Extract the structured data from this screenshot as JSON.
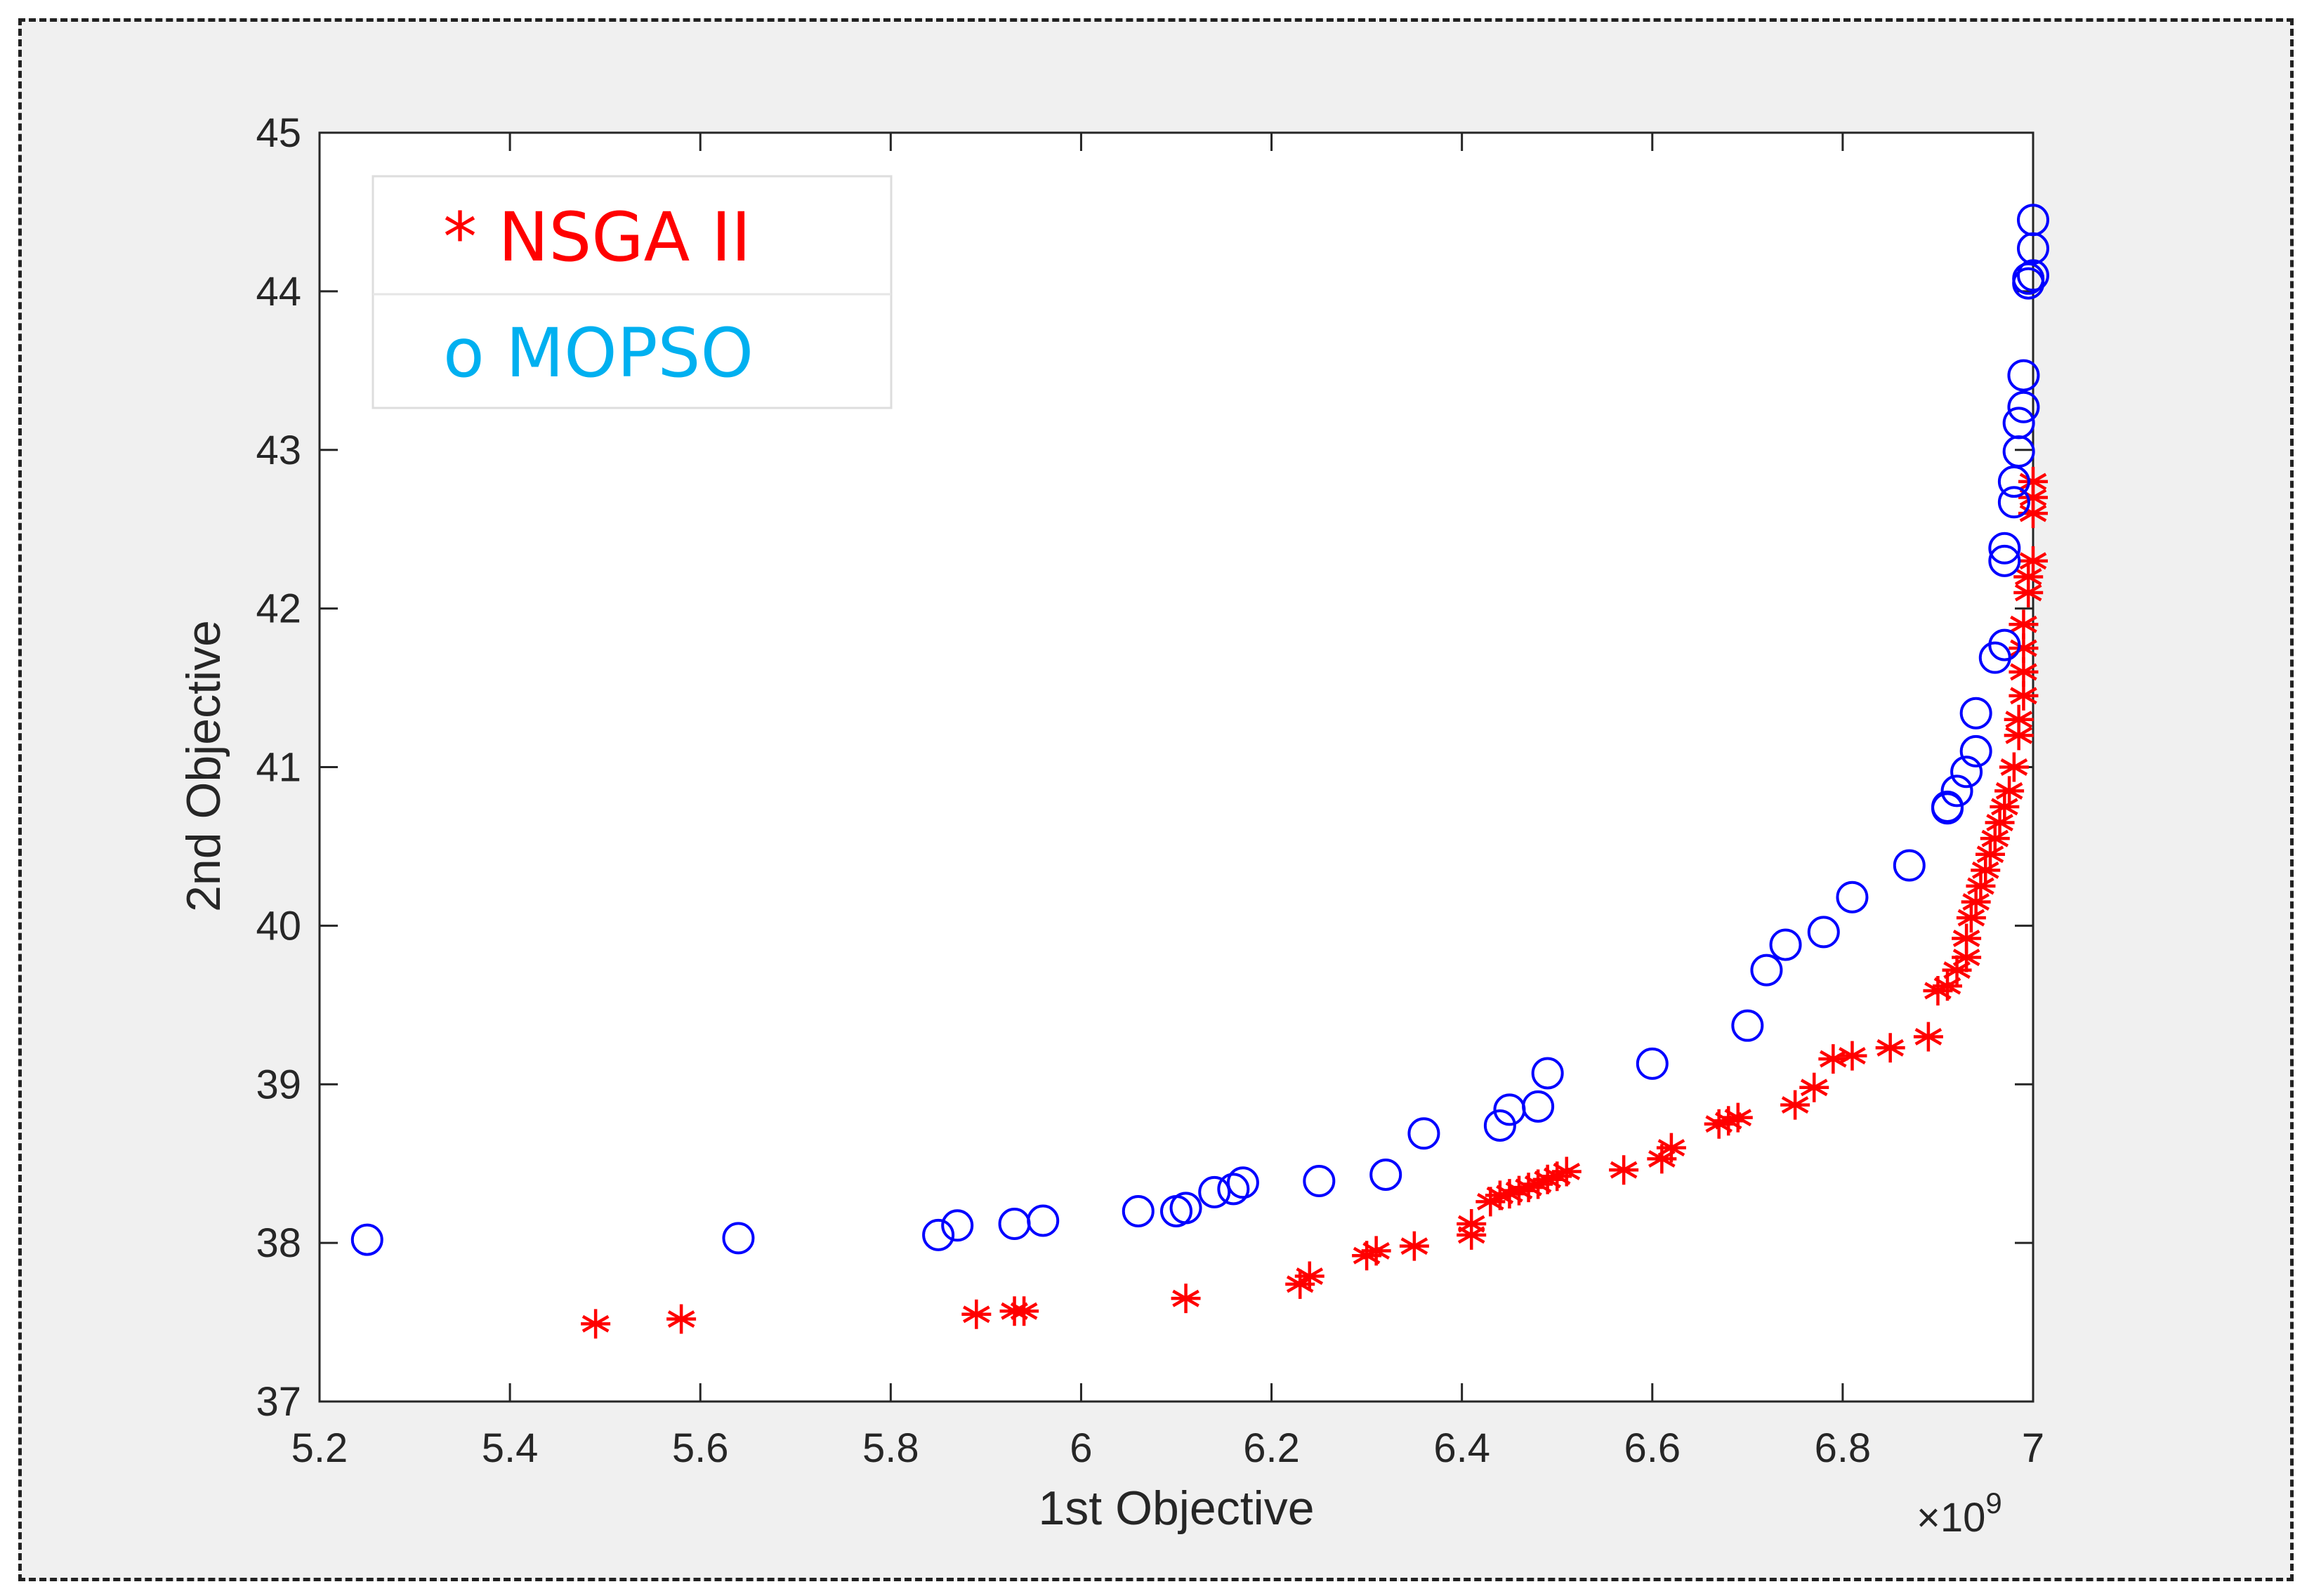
{
  "chart_data": {
    "type": "scatter",
    "title": "",
    "xlabel": "1st Objective",
    "ylabel": "2nd Objective",
    "x_multiplier": "×10",
    "x_exponent": "9",
    "xlim": [
      5.2,
      7.0
    ],
    "ylim": [
      37,
      45
    ],
    "xticks": [
      "5.2",
      "5.4",
      "5.6",
      "5.8",
      "6",
      "6.2",
      "6.4",
      "6.6",
      "6.8",
      "7"
    ],
    "yticks": [
      "37",
      "38",
      "39",
      "40",
      "41",
      "42",
      "43",
      "44",
      "45"
    ],
    "grid": false,
    "legend_position": "top-left",
    "series": [
      {
        "name": "NSGA II",
        "legend_label": "* NSGA II",
        "marker": "asterisk",
        "color": "#ff0000",
        "points": [
          [
            5.49,
            37.49
          ],
          [
            5.58,
            37.52
          ],
          [
            5.89,
            37.55
          ],
          [
            5.93,
            37.57
          ],
          [
            5.94,
            37.57
          ],
          [
            6.11,
            37.65
          ],
          [
            6.23,
            37.74
          ],
          [
            6.24,
            37.79
          ],
          [
            6.3,
            37.92
          ],
          [
            6.31,
            37.95
          ],
          [
            6.35,
            37.98
          ],
          [
            6.41,
            38.05
          ],
          [
            6.41,
            38.12
          ],
          [
            6.43,
            38.26
          ],
          [
            6.44,
            38.3
          ],
          [
            6.45,
            38.31
          ],
          [
            6.46,
            38.33
          ],
          [
            6.47,
            38.35
          ],
          [
            6.48,
            38.37
          ],
          [
            6.49,
            38.4
          ],
          [
            6.5,
            38.42
          ],
          [
            6.51,
            38.45
          ],
          [
            6.57,
            38.46
          ],
          [
            6.61,
            38.53
          ],
          [
            6.62,
            38.6
          ],
          [
            6.67,
            38.75
          ],
          [
            6.68,
            38.77
          ],
          [
            6.69,
            38.79
          ],
          [
            6.75,
            38.87
          ],
          [
            6.77,
            38.98
          ],
          [
            6.79,
            39.16
          ],
          [
            6.81,
            39.18
          ],
          [
            6.85,
            39.23
          ],
          [
            6.89,
            39.3
          ],
          [
            6.9,
            39.59
          ],
          [
            6.91,
            39.62
          ],
          [
            6.92,
            39.72
          ],
          [
            6.93,
            39.8
          ],
          [
            6.93,
            39.92
          ],
          [
            6.935,
            40.05
          ],
          [
            6.94,
            40.15
          ],
          [
            6.945,
            40.25
          ],
          [
            6.95,
            40.35
          ],
          [
            6.955,
            40.45
          ],
          [
            6.96,
            40.55
          ],
          [
            6.965,
            40.65
          ],
          [
            6.97,
            40.75
          ],
          [
            6.975,
            40.85
          ],
          [
            6.98,
            41.0
          ],
          [
            6.985,
            41.2
          ],
          [
            6.985,
            41.3
          ],
          [
            6.99,
            41.45
          ],
          [
            6.99,
            41.6
          ],
          [
            6.99,
            41.75
          ],
          [
            6.99,
            41.9
          ],
          [
            6.995,
            42.1
          ],
          [
            6.995,
            42.2
          ],
          [
            7.0,
            42.3
          ],
          [
            7.0,
            42.6
          ],
          [
            7.0,
            42.7
          ],
          [
            7.0,
            42.8
          ]
        ]
      },
      {
        "name": "MOPSO",
        "legend_label": "o MOPSO",
        "marker": "circle",
        "color": "#0000ff",
        "legend_color": "#00b0f0",
        "points": [
          [
            5.25,
            38.02
          ],
          [
            5.64,
            38.03
          ],
          [
            5.85,
            38.05
          ],
          [
            5.87,
            38.11
          ],
          [
            5.93,
            38.12
          ],
          [
            5.96,
            38.14
          ],
          [
            6.06,
            38.2
          ],
          [
            6.1,
            38.2
          ],
          [
            6.11,
            38.22
          ],
          [
            6.14,
            38.32
          ],
          [
            6.16,
            38.34
          ],
          [
            6.17,
            38.38
          ],
          [
            6.25,
            38.39
          ],
          [
            6.32,
            38.43
          ],
          [
            6.36,
            38.69
          ],
          [
            6.44,
            38.74
          ],
          [
            6.45,
            38.84
          ],
          [
            6.48,
            38.86
          ],
          [
            6.49,
            39.07
          ],
          [
            6.6,
            39.13
          ],
          [
            6.7,
            39.37
          ],
          [
            6.72,
            39.72
          ],
          [
            6.74,
            39.88
          ],
          [
            6.78,
            39.96
          ],
          [
            6.81,
            40.18
          ],
          [
            6.87,
            40.38
          ],
          [
            6.91,
            40.74
          ],
          [
            6.91,
            40.75
          ],
          [
            6.92,
            40.85
          ],
          [
            6.93,
            40.97
          ],
          [
            6.94,
            41.1
          ],
          [
            6.94,
            41.34
          ],
          [
            6.96,
            41.69
          ],
          [
            6.97,
            41.77
          ],
          [
            6.97,
            42.3
          ],
          [
            6.97,
            42.38
          ],
          [
            6.98,
            42.67
          ],
          [
            6.98,
            42.8
          ],
          [
            6.985,
            42.99
          ],
          [
            6.985,
            43.17
          ],
          [
            6.99,
            43.27
          ],
          [
            6.99,
            43.47
          ],
          [
            6.995,
            44.05
          ],
          [
            6.995,
            44.08
          ],
          [
            7.0,
            44.1
          ],
          [
            7.0,
            44.27
          ],
          [
            7.0,
            44.45
          ]
        ]
      }
    ]
  }
}
